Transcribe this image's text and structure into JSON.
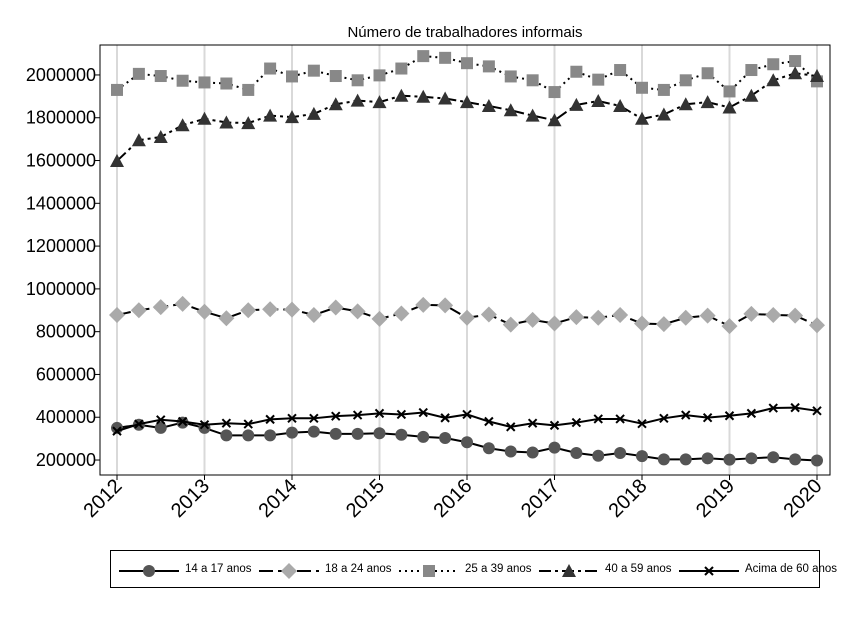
{
  "chart_data": {
    "type": "line",
    "title": "Número de trabalhadores informais",
    "xlabel": "",
    "ylabel": "",
    "xlim": [
      2012,
      2020
    ],
    "ylim": [
      130000,
      2140000
    ],
    "x_ticks": [
      2012,
      2013,
      2014,
      2015,
      2016,
      2017,
      2018,
      2019,
      2020
    ],
    "y_ticks": [
      200000,
      400000,
      600000,
      800000,
      1000000,
      1200000,
      1400000,
      1600000,
      1800000,
      2000000
    ],
    "grid": "vertical",
    "legend": "bottom",
    "x": [
      2012.0,
      2012.25,
      2012.5,
      2012.75,
      2013.0,
      2013.25,
      2013.5,
      2013.75,
      2014.0,
      2014.25,
      2014.5,
      2014.75,
      2015.0,
      2015.25,
      2015.5,
      2015.75,
      2016.0,
      2016.25,
      2016.5,
      2016.75,
      2017.0,
      2017.25,
      2017.5,
      2017.75,
      2018.0,
      2018.25,
      2018.5,
      2018.75,
      2019.0,
      2019.25,
      2019.5,
      2019.75,
      2020.0
    ],
    "series": [
      {
        "name": "14 a 17 anos",
        "marker": "circle",
        "dash": "solid",
        "color": "#555555",
        "values": [
          350000,
          365000,
          350000,
          375000,
          350000,
          315000,
          315000,
          315000,
          328000,
          333000,
          322000,
          322000,
          325000,
          318000,
          308000,
          303000,
          283000,
          255000,
          240000,
          235000,
          258000,
          233000,
          220000,
          233000,
          218000,
          203000,
          203000,
          208000,
          202000,
          208000,
          213000,
          203000,
          198000
        ]
      },
      {
        "name": "18 a 24 anos",
        "marker": "diamond",
        "dash": "longdash",
        "color": "#aaaaaa",
        "values": [
          878000,
          900000,
          915000,
          930000,
          893000,
          863000,
          900000,
          905000,
          903000,
          878000,
          913000,
          895000,
          860000,
          885000,
          925000,
          923000,
          865000,
          880000,
          833000,
          855000,
          838000,
          868000,
          865000,
          878000,
          838000,
          835000,
          865000,
          875000,
          826000,
          883000,
          878000,
          875000,
          830000
        ]
      },
      {
        "name": "25 a 39 anos",
        "marker": "square",
        "dash": "dotted",
        "color": "#888888",
        "values": [
          1930000,
          2005000,
          1995000,
          1973000,
          1965000,
          1960000,
          1930000,
          2030000,
          1993000,
          2020000,
          1995000,
          1975000,
          1998000,
          2030000,
          2088000,
          2080000,
          2055000,
          2040000,
          1993000,
          1975000,
          1920000,
          2015000,
          1978000,
          2023000,
          1940000,
          1930000,
          1975000,
          2008000,
          1923000,
          2023000,
          2050000,
          2065000,
          1970000
        ]
      },
      {
        "name": "40 a 59 anos",
        "marker": "triangle",
        "dash": "dashdot",
        "color": "#333333",
        "values": [
          1598000,
          1695000,
          1710000,
          1765000,
          1795000,
          1778000,
          1775000,
          1810000,
          1803000,
          1818000,
          1863000,
          1880000,
          1873000,
          1903000,
          1898000,
          1890000,
          1873000,
          1855000,
          1835000,
          1810000,
          1788000,
          1860000,
          1878000,
          1855000,
          1795000,
          1815000,
          1863000,
          1873000,
          1848000,
          1903000,
          1975000,
          2008000,
          1995000
        ]
      },
      {
        "name": "Acima de 60 anos",
        "marker": "x",
        "dash": "solid",
        "color": "#000000",
        "values": [
          335000,
          368000,
          388000,
          380000,
          365000,
          372000,
          368000,
          390000,
          395000,
          395000,
          405000,
          410000,
          418000,
          413000,
          422000,
          397000,
          413000,
          380000,
          355000,
          372000,
          362000,
          375000,
          392000,
          392000,
          370000,
          395000,
          410000,
          398000,
          407000,
          418000,
          443000,
          445000,
          430000
        ]
      }
    ]
  }
}
